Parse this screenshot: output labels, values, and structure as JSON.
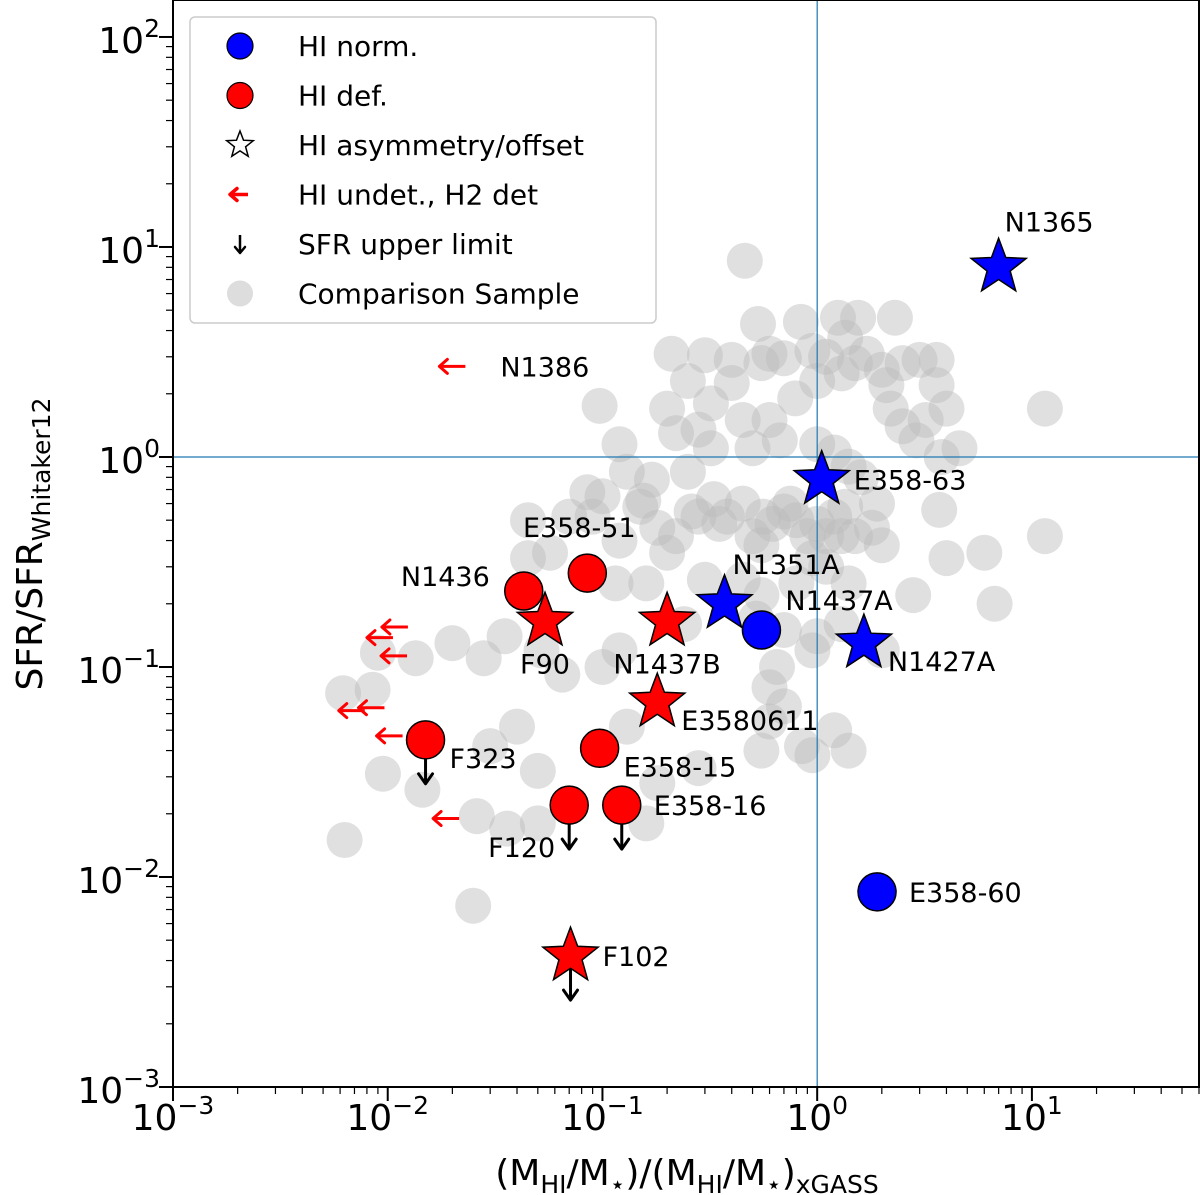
{
  "chart_data": {
    "type": "scatter",
    "xscale": "log",
    "yscale": "log",
    "xlim": [
      0.001,
      60
    ],
    "ylim": [
      0.001,
      150
    ],
    "xlabel": {
      "main1": "(M",
      "sub1": "HI",
      "main2": "/M",
      "sub2": "⋆",
      "main3": ")/(M",
      "sub3": "HI",
      "main4": "/M",
      "sub4": "⋆",
      "main5": ")",
      "sub5": "xGASS"
    },
    "ylabel": {
      "main": "SFR/SFR",
      "sub": "Whitaker12"
    },
    "x_ticks": [
      {
        "value": 0.001,
        "base": "10",
        "exp": "−3"
      },
      {
        "value": 0.01,
        "base": "10",
        "exp": "−2"
      },
      {
        "value": 0.1,
        "base": "10",
        "exp": "−1"
      },
      {
        "value": 1,
        "base": "10",
        "exp": "0"
      },
      {
        "value": 10,
        "base": "10",
        "exp": "1"
      }
    ],
    "y_ticks": [
      {
        "value": 0.001,
        "base": "10",
        "exp": "−3"
      },
      {
        "value": 0.01,
        "base": "10",
        "exp": "−2"
      },
      {
        "value": 0.1,
        "base": "10",
        "exp": "−1"
      },
      {
        "value": 1,
        "base": "10",
        "exp": "0"
      },
      {
        "value": 10,
        "base": "10",
        "exp": "1"
      },
      {
        "value": 100,
        "base": "10",
        "exp": "2"
      }
    ],
    "reference_lines": {
      "x": 1.0,
      "y": 1.0,
      "color": "#1f77b4"
    },
    "colors": {
      "hi_normal": "#0000ff",
      "hi_deficient": "#ff0000",
      "comparison": "#bbbbbb",
      "upper_limit": "#000000"
    },
    "series": [
      {
        "name": "HI normal",
        "points": [
          {
            "label": "N1365",
            "x": 7.0,
            "y": 8.0,
            "marker": "star",
            "label_pos": "above"
          },
          {
            "label": "E358-63",
            "x": 1.05,
            "y": 0.78,
            "marker": "star",
            "label_pos": "right"
          },
          {
            "label": "N1351A",
            "x": 0.37,
            "y": 0.2,
            "marker": "star",
            "label_pos": "above-right"
          },
          {
            "label": "N1437A",
            "x": 0.55,
            "y": 0.15,
            "marker": "circle",
            "label_pos": "upper-right"
          },
          {
            "label": "N1427A",
            "x": 1.65,
            "y": 0.13,
            "marker": "star",
            "label_pos": "lower-right"
          },
          {
            "label": "E358-60",
            "x": 1.9,
            "y": 0.0085,
            "marker": "circle",
            "label_pos": "right"
          }
        ]
      },
      {
        "name": "HI deficient",
        "points": [
          {
            "label": "E358-51",
            "x": 0.085,
            "y": 0.28,
            "marker": "circle",
            "label_pos": "above"
          },
          {
            "label": "N1436",
            "x": 0.043,
            "y": 0.23,
            "marker": "circle",
            "label_pos": "left"
          },
          {
            "label": "F90",
            "x": 0.054,
            "y": 0.165,
            "marker": "star",
            "label_pos": "below"
          },
          {
            "label": "N1437B",
            "x": 0.2,
            "y": 0.165,
            "marker": "star",
            "label_pos": "below"
          },
          {
            "label": "E3580611",
            "x": 0.18,
            "y": 0.068,
            "marker": "star",
            "label_pos": "lower-right"
          },
          {
            "label": "F323",
            "x": 0.015,
            "y": 0.045,
            "marker": "circle",
            "label_pos": "lower-right",
            "upper_limit": true
          },
          {
            "label": "E358-15",
            "x": 0.097,
            "y": 0.041,
            "marker": "circle",
            "label_pos": "lower-right"
          },
          {
            "label": "F120",
            "x": 0.07,
            "y": 0.022,
            "marker": "circle",
            "label_pos": "lower-left",
            "upper_limit": true
          },
          {
            "label": "E358-16",
            "x": 0.123,
            "y": 0.022,
            "marker": "circle",
            "label_pos": "right",
            "upper_limit": true
          },
          {
            "label": "F102",
            "x": 0.071,
            "y": 0.0042,
            "marker": "star",
            "label_pos": "right",
            "upper_limit": true
          }
        ]
      },
      {
        "name": "HI undetected, H2 detected",
        "points": [
          {
            "label": "N1386",
            "x": 0.02,
            "y": 2.7
          },
          {
            "label": "",
            "x": 0.0108,
            "y": 0.155
          },
          {
            "label": "",
            "x": 0.0092,
            "y": 0.138
          },
          {
            "label": "",
            "x": 0.0107,
            "y": 0.113
          },
          {
            "label": "",
            "x": 0.0084,
            "y": 0.064
          },
          {
            "label": "",
            "x": 0.0068,
            "y": 0.062
          },
          {
            "label": "",
            "x": 0.0102,
            "y": 0.047
          },
          {
            "label": "",
            "x": 0.0187,
            "y": 0.019
          }
        ]
      },
      {
        "name": "Comparison Sample",
        "points": [
          [
            0.46,
            8.6
          ],
          [
            0.84,
            4.4
          ],
          [
            0.53,
            4.3
          ],
          [
            0.3,
            3.05
          ],
          [
            0.21,
            3.1
          ],
          [
            0.4,
            2.9
          ],
          [
            0.55,
            2.8
          ],
          [
            0.6,
            3.1
          ],
          [
            0.7,
            2.95
          ],
          [
            0.95,
            3.2
          ],
          [
            0.79,
            1.9
          ],
          [
            0.67,
            1.2
          ],
          [
            0.6,
            1.5
          ],
          [
            0.45,
            1.5
          ],
          [
            0.5,
            1.1
          ],
          [
            0.32,
            1.1
          ],
          [
            0.32,
            1.8
          ],
          [
            0.25,
            2.3
          ],
          [
            0.4,
            2.25
          ],
          [
            0.28,
            1.35
          ],
          [
            0.22,
            1.3
          ],
          [
            0.2,
            1.7
          ],
          [
            0.12,
            1.15
          ],
          [
            0.25,
            0.85
          ],
          [
            0.28,
            0.52
          ],
          [
            0.35,
            0.48
          ],
          [
            0.15,
            0.58
          ],
          [
            0.12,
            0.4
          ],
          [
            0.115,
            0.25
          ],
          [
            0.085,
            0.68
          ],
          [
            0.07,
            0.52
          ],
          [
            0.045,
            0.5
          ],
          [
            0.057,
            0.35
          ],
          [
            0.045,
            0.33
          ],
          [
            0.097,
            1.75
          ],
          [
            0.09,
            0.52
          ],
          [
            0.1,
            0.65
          ],
          [
            0.13,
            0.85
          ],
          [
            0.155,
            0.62
          ],
          [
            0.17,
            0.78
          ],
          [
            0.2,
            0.35
          ],
          [
            0.22,
            0.42
          ],
          [
            0.26,
            0.55
          ],
          [
            0.33,
            0.63
          ],
          [
            0.38,
            0.52
          ],
          [
            0.45,
            0.6
          ],
          [
            0.5,
            0.42
          ],
          [
            0.55,
            0.38
          ],
          [
            0.62,
            0.48
          ],
          [
            0.7,
            0.55
          ],
          [
            0.8,
            0.5
          ],
          [
            0.9,
            0.42
          ],
          [
            1.0,
            0.48
          ],
          [
            1.2,
            0.52
          ],
          [
            1.35,
            0.58
          ],
          [
            1.1,
            0.42
          ],
          [
            1.3,
            0.42
          ],
          [
            1.5,
            0.42
          ],
          [
            1.8,
            0.46
          ],
          [
            2.0,
            0.38
          ],
          [
            1.9,
            0.6
          ],
          [
            1.6,
            0.8
          ],
          [
            1.4,
            0.9
          ],
          [
            1.2,
            1.05
          ],
          [
            1.0,
            1.15
          ],
          [
            1.0,
            2.3
          ],
          [
            1.1,
            3.0
          ],
          [
            1.3,
            2.5
          ],
          [
            1.5,
            2.8
          ],
          [
            1.7,
            3.1
          ],
          [
            2.0,
            2.6
          ],
          [
            2.1,
            2.2
          ],
          [
            2.5,
            2.8
          ],
          [
            3.0,
            2.9
          ],
          [
            3.6,
            2.2
          ],
          [
            3.6,
            2.9
          ],
          [
            2.2,
            1.7
          ],
          [
            2.5,
            1.4
          ],
          [
            2.9,
            1.2
          ],
          [
            3.2,
            1.5
          ],
          [
            4.0,
            1.7
          ],
          [
            4.6,
            1.1
          ],
          [
            3.8,
            1.0
          ],
          [
            3.7,
            0.56
          ],
          [
            4.0,
            0.33
          ],
          [
            2.8,
            0.22
          ],
          [
            1.4,
            0.25
          ],
          [
            1.1,
            0.3
          ],
          [
            0.95,
            0.33
          ],
          [
            0.8,
            0.25
          ],
          [
            0.7,
            0.15
          ],
          [
            0.65,
            0.1
          ],
          [
            0.6,
            0.08
          ],
          [
            0.7,
            0.065
          ],
          [
            0.95,
            0.12
          ],
          [
            1.0,
            0.14
          ],
          [
            1.3,
            0.16
          ],
          [
            2.0,
            0.12
          ],
          [
            6.0,
            0.35
          ],
          [
            6.7,
            0.2
          ],
          [
            11.5,
            0.42
          ],
          [
            11.5,
            1.7
          ],
          [
            1.25,
            4.6
          ],
          [
            1.55,
            4.6
          ],
          [
            2.3,
            4.6
          ],
          [
            1.35,
            3.7
          ],
          [
            0.6,
            0.055
          ],
          [
            0.55,
            0.04
          ],
          [
            0.85,
            0.042
          ],
          [
            0.95,
            0.038
          ],
          [
            1.2,
            0.05
          ],
          [
            1.4,
            0.04
          ],
          [
            0.12,
            0.12
          ],
          [
            0.1,
            0.1
          ],
          [
            0.065,
            0.092
          ],
          [
            0.052,
            0.12
          ],
          [
            0.035,
            0.14
          ],
          [
            0.028,
            0.11
          ],
          [
            0.02,
            0.13
          ],
          [
            0.0135,
            0.11
          ],
          [
            0.009,
            0.117
          ],
          [
            0.0085,
            0.078
          ],
          [
            0.0062,
            0.075
          ],
          [
            0.0095,
            0.031
          ],
          [
            0.0063,
            0.015
          ],
          [
            0.0145,
            0.026
          ],
          [
            0.026,
            0.0195
          ],
          [
            0.036,
            0.017
          ],
          [
            0.05,
            0.018
          ],
          [
            0.025,
            0.0073
          ],
          [
            0.04,
            0.052
          ],
          [
            0.03,
            0.042
          ],
          [
            0.05,
            0.032
          ],
          [
            0.13,
            0.052
          ],
          [
            0.18,
            0.028
          ],
          [
            0.16,
            0.018
          ],
          [
            0.28,
            0.033
          ],
          [
            0.24,
            0.16
          ],
          [
            0.16,
            0.25
          ],
          [
            0.3,
            0.26
          ],
          [
            0.45,
            0.26
          ],
          [
            0.55,
            0.22
          ],
          [
            0.52,
            0.17
          ],
          [
            0.18,
            0.46
          ],
          [
            0.56,
            0.52
          ],
          [
            0.75,
            0.6
          ]
        ]
      }
    ],
    "legend": {
      "position": "top-left",
      "entries": [
        {
          "label": "HI norm.",
          "marker": "circle",
          "color": "#0000ff"
        },
        {
          "label": "HI def.",
          "marker": "circle",
          "color": "#ff0000"
        },
        {
          "label": "HI asymmetry/offset",
          "marker": "star-open",
          "color": "#ffffff"
        },
        {
          "label": "HI undet., H2 det",
          "marker": "left-arrow",
          "color": "#ff0000"
        },
        {
          "label": "SFR upper limit",
          "marker": "down-arrow",
          "color": "#000000"
        },
        {
          "label": "Comparison Sample",
          "marker": "circle",
          "color": "#bbbbbb"
        }
      ]
    }
  }
}
